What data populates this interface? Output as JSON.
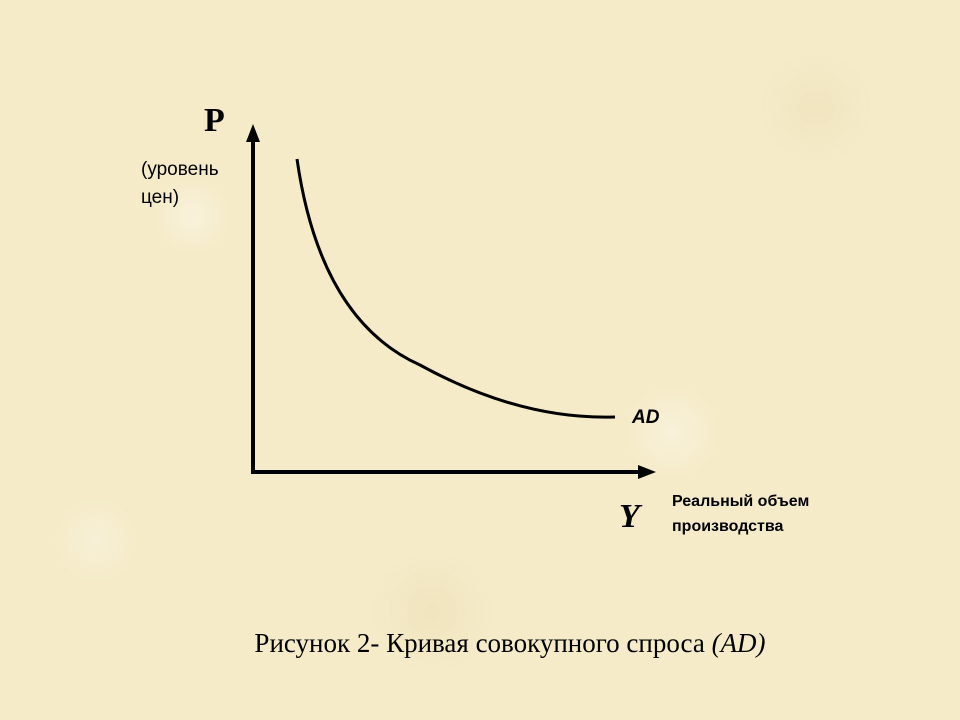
{
  "diagram": {
    "y_axis": {
      "letter": "P",
      "description": "(уровень цен)"
    },
    "x_axis": {
      "letter": "Y",
      "description": "Реальный объем производства"
    },
    "curve": {
      "label": "AD"
    }
  },
  "caption": {
    "text": "Рисунок 2- Кривая совокупного спроса ",
    "italic": "(AD)"
  }
}
